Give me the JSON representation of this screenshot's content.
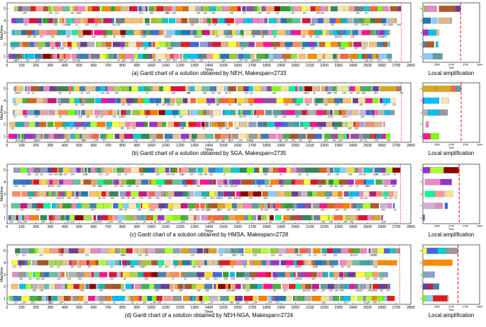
{
  "figure": {
    "machine_label": "Machine",
    "time_label": "Time",
    "x_ticks": [
      0,
      100,
      200,
      300,
      400,
      500,
      600,
      700,
      800,
      900,
      1000,
      1100,
      1200,
      1300,
      1400,
      1500,
      1600,
      1700,
      1800,
      1900,
      2000,
      2100,
      2200,
      2300,
      2400,
      2500,
      2600,
      2700,
      2800
    ],
    "machine_ticks": [
      1,
      2,
      3,
      4,
      5
    ],
    "zoom_ticks": [
      2650,
      2700,
      2750,
      2800
    ],
    "local_title": "Local amplification",
    "palette": [
      "#e41a1c",
      "#377eb8",
      "#4daf4a",
      "#984ea3",
      "#ff7f00",
      "#ffff33",
      "#a65628",
      "#f781bf",
      "#999999",
      "#66c2a5",
      "#fc8d62",
      "#8da0cb",
      "#e78ac3",
      "#a6d854",
      "#ffd92f",
      "#e5c494",
      "#b3b3b3",
      "#1f78b4",
      "#33a02c",
      "#fb9a99",
      "#fdbf6f",
      "#cab2d6",
      "#6a3d9a",
      "#b15928",
      "#00ced1",
      "#ff1493",
      "#7fff00",
      "#dc143c",
      "#20b2aa",
      "#f4a460",
      "#708090",
      "#adff2f",
      "#ff6347",
      "#4169e1",
      "#daa520",
      "#9932cc",
      "#00bfff",
      "#8b0000",
      "#2e8b57",
      "#d2691e",
      "#ffe4b5",
      "#00fa9a",
      "#c71585",
      "#87cefa",
      "#f0e68c",
      "#5f9ea0",
      "#ff8c00",
      "#9acd32",
      "#4682b4",
      "#deb887"
    ],
    "cut_color": "#ff0000"
  },
  "chart_data": [
    {
      "type": "gantt",
      "caption": "(a) Gantt chart of a solution obtained by NEH, Makespan=2733",
      "makespan": 2733,
      "xlim": [
        0,
        2800
      ],
      "machines": [
        1,
        2,
        3,
        4,
        5
      ],
      "seed": 11,
      "zoom_xlim": [
        2600,
        2800
      ]
    },
    {
      "type": "gantt",
      "caption": "(b) Gantt chart of a solution obtained by SGA, Makespan=2735",
      "makespan": 2735,
      "xlim": [
        0,
        2800
      ],
      "machines": [
        1,
        2,
        3,
        4,
        5
      ],
      "seed": 23,
      "zoom_xlim": [
        2600,
        2800
      ]
    },
    {
      "type": "gantt",
      "caption": "(c) Gantt chart of a solution obtained by HMSA, Makespan=2728",
      "makespan": 2728,
      "xlim": [
        0,
        2800
      ],
      "machines": [
        1,
        2,
        3,
        4,
        5
      ],
      "seed": 37,
      "zoom_xlim": [
        2600,
        2800
      ]
    },
    {
      "type": "gantt",
      "caption": "(d) Gantt chart of a solution obtained by NEH-NGA, Makespan=2724",
      "makespan": 2724,
      "xlim": [
        0,
        2800
      ],
      "machines": [
        1,
        2,
        3,
        4,
        5
      ],
      "seed": 53,
      "zoom_xlim": [
        2600,
        2800
      ]
    }
  ]
}
